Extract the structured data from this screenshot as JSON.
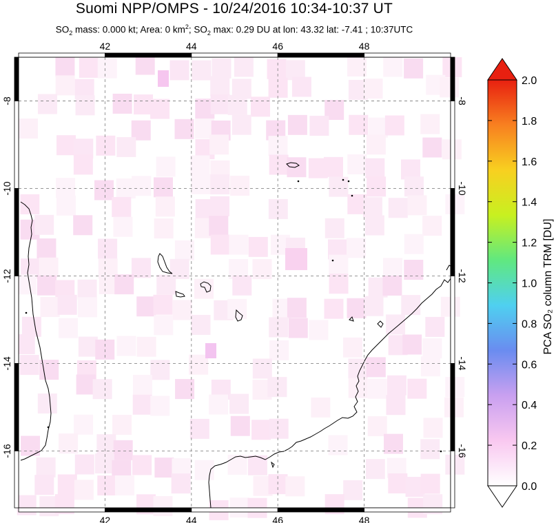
{
  "header": {
    "title": "Suomi NPP/OMPS - 10/24/2016 10:34-10:37 UT",
    "subtitle_parts": {
      "so2_mass_prefix": "SO",
      "so2_mass_sub": "2",
      "so2_mass_text": " mass: 0.000 kt; Area: 0 km",
      "area_sup": "2",
      "so2_max_prefix": "; SO",
      "so2_max_sub": "2",
      "so2_max_text": " max: 0.29 DU at lon: 43.32 lat: -7.41 ; 10:37UTC"
    }
  },
  "map": {
    "lon_ticks": [
      "42",
      "44",
      "46",
      "48"
    ],
    "lat_ticks": [
      "-8",
      "-10",
      "-12",
      "-14",
      "-16"
    ],
    "lon_values": [
      42,
      44,
      46,
      48
    ],
    "lat_values": [
      -8,
      -10,
      -12,
      -14,
      -16
    ],
    "lon_range": [
      40,
      50
    ],
    "lat_range": [
      -17.3,
      -7.0
    ],
    "gridlines": "dashed"
  },
  "colorbar": {
    "label": "PCA SO₂ column TRM [DU]",
    "tick_labels": [
      "0.0",
      "0.2",
      "0.4",
      "0.6",
      "0.8",
      "1.0",
      "1.2",
      "1.4",
      "1.6",
      "1.8",
      "2.0"
    ],
    "range": [
      0.0,
      2.0
    ],
    "colors": [
      "#ffffff",
      "#f9c8f0",
      "#c9a0f0",
      "#6a8cf0",
      "#4fd0f0",
      "#60e880",
      "#c8f020",
      "#f8d020",
      "#f88020",
      "#e82010"
    ]
  }
}
